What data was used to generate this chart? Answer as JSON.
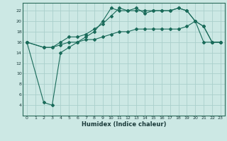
{
  "xlabel": "Humidex (Indice chaleur)",
  "bg_color": "#cce8e4",
  "grid_color": "#aacfcb",
  "line_color": "#1a6b5a",
  "xlim": [
    -0.5,
    23.5
  ],
  "ylim": [
    2,
    23.5
  ],
  "xticks": [
    0,
    1,
    2,
    3,
    4,
    5,
    6,
    7,
    8,
    9,
    10,
    11,
    12,
    13,
    14,
    15,
    16,
    17,
    18,
    19,
    20,
    21,
    22,
    23
  ],
  "yticks": [
    4,
    6,
    8,
    10,
    12,
    14,
    16,
    18,
    20,
    22
  ],
  "line1_x": [
    0,
    2,
    3,
    4,
    5,
    6,
    7,
    8,
    9,
    10,
    11,
    12,
    13,
    14,
    15,
    16,
    17,
    18,
    19,
    20,
    21,
    22,
    23
  ],
  "line1_y": [
    16,
    15,
    15,
    15.5,
    16,
    16,
    16.5,
    16.5,
    17,
    17.5,
    18,
    18,
    18.5,
    18.5,
    18.5,
    18.5,
    18.5,
    18.5,
    19,
    20,
    19,
    16,
    16
  ],
  "line2_x": [
    0,
    2,
    3,
    4,
    5,
    6,
    7,
    8,
    9,
    10,
    11,
    12,
    13,
    14,
    15,
    16,
    17,
    18,
    19,
    20,
    21,
    22,
    23
  ],
  "line2_y": [
    16,
    15,
    15,
    16,
    17,
    17,
    17.5,
    18.5,
    19.5,
    21,
    22.5,
    22,
    22.5,
    21.5,
    22,
    22,
    22,
    22.5,
    22,
    20,
    19,
    16,
    16
  ],
  "line3_x": [
    0,
    2,
    3,
    4,
    5,
    6,
    7,
    8,
    9,
    10,
    11,
    12,
    13,
    14,
    15,
    16,
    17,
    18,
    19,
    20,
    21,
    22,
    23
  ],
  "line3_y": [
    16,
    4.5,
    4,
    14,
    15,
    16,
    17,
    18,
    20,
    22.5,
    22,
    22,
    22,
    22,
    22,
    22,
    22,
    22.5,
    22,
    20,
    16,
    16,
    16
  ]
}
